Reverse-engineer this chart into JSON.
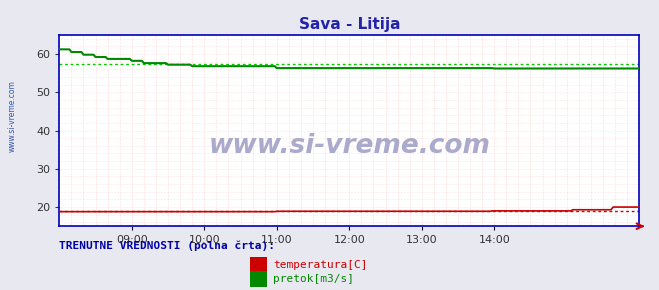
{
  "title": "Sava - Litija",
  "title_color": "#2222aa",
  "bg_color": "#e8e8f0",
  "plot_bg_color": "#ffffff",
  "ylim": [
    15,
    65
  ],
  "yticks": [
    20,
    30,
    40,
    50,
    60
  ],
  "watermark": "www.si-vreme.com",
  "watermark_color": "#aaaacc",
  "sidebar_text": "www.si-vreme.com",
  "sidebar_color": "#3355aa",
  "pretok_color": "#008800",
  "temp_color": "#cc0000",
  "avg_pretok_value": 57.5,
  "avg_pretok_color": "#00cc00",
  "avg_temp_value": 18.9,
  "avg_temp_color": "#cc0000",
  "legend_label1": "temperatura[C]",
  "legend_label2": "pretok[m3/s]",
  "legend_title": "TRENUTNE VREDNOSTI (polna črta):",
  "legend_color": "#0000aa",
  "spine_color": "#0000bb",
  "grid_color": "#ffcccc",
  "grid_color_v": "#ffbbbb",
  "arrow_color": "#cc0000",
  "tick_color": "#333333",
  "hour_positions": [
    36,
    72,
    108,
    144,
    180,
    216
  ],
  "hour_labels": [
    "09:00",
    "10:00",
    "11:00",
    "12:00",
    "13:00",
    "14:00"
  ],
  "n_points": 289,
  "xlim": [
    0,
    288
  ]
}
